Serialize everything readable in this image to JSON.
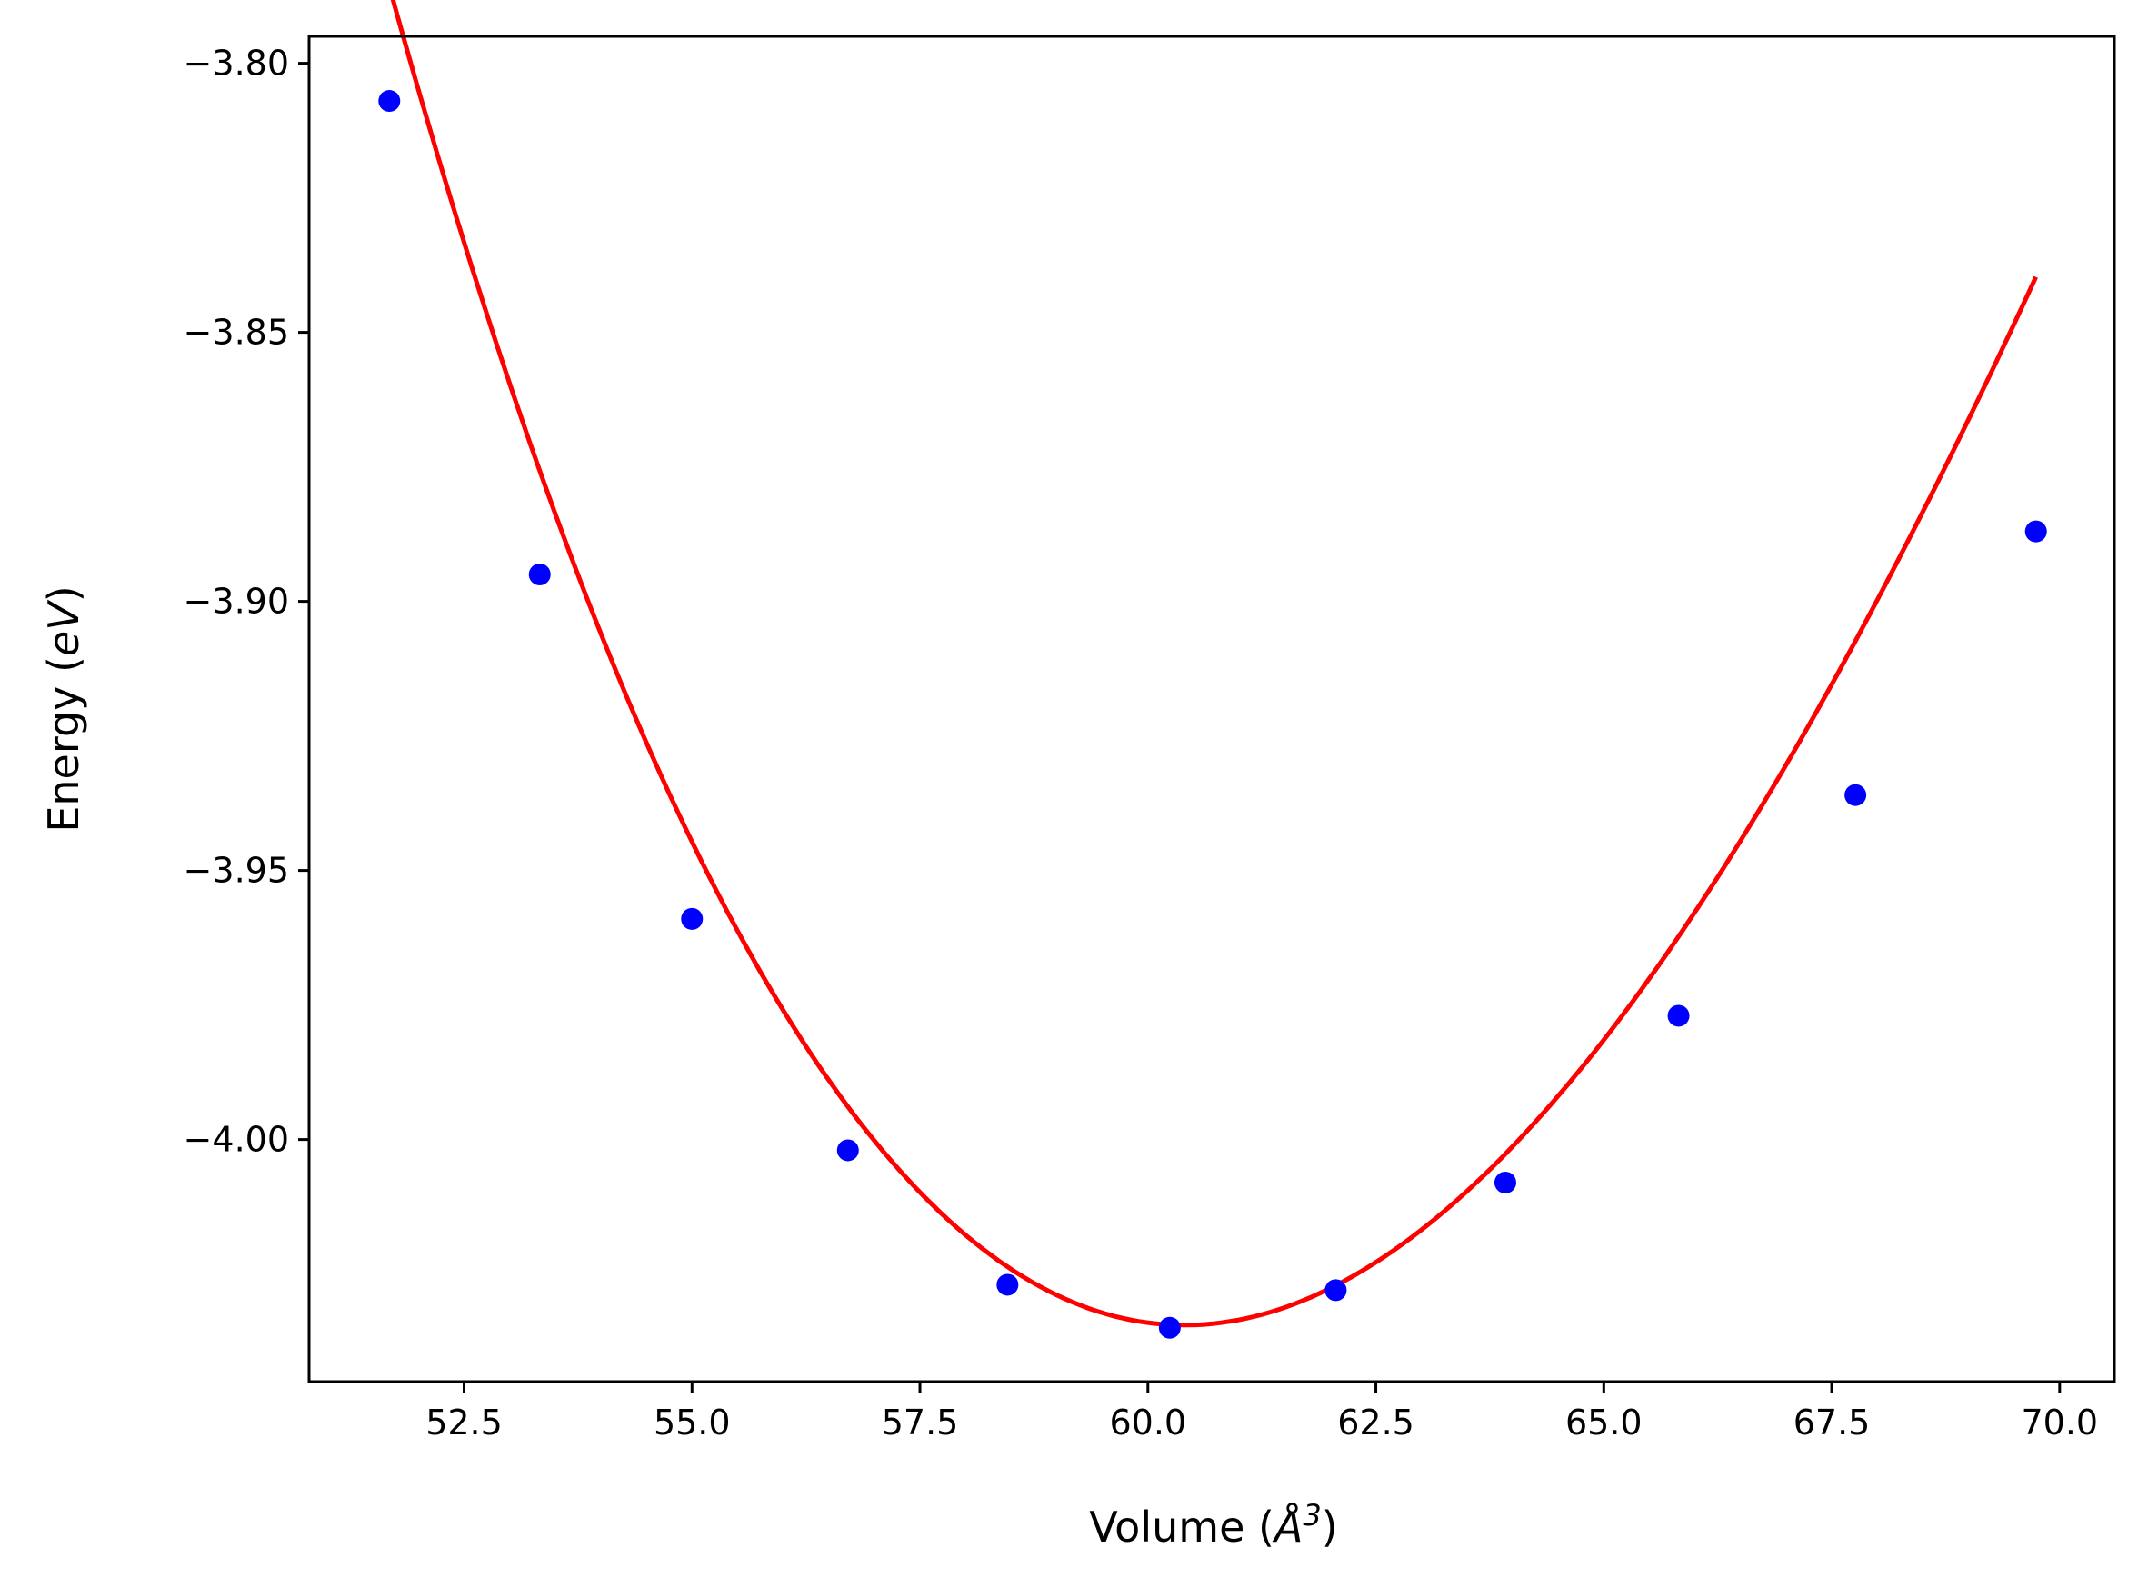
{
  "chart_data": {
    "type": "scatter",
    "title": "",
    "xlabel_parts": {
      "prefix": "Volume (",
      "unit": "Å",
      "superscript": "3",
      "suffix": ")"
    },
    "ylabel_parts": {
      "prefix": "Energy (",
      "unit": "eV",
      "suffix": ")"
    },
    "xlim": [
      50.8,
      70.6
    ],
    "ylim": [
      -4.045,
      -3.795
    ],
    "xticks": [
      52.5,
      55.0,
      57.5,
      60.0,
      62.5,
      65.0,
      67.5,
      70.0
    ],
    "xtick_labels": [
      "52.5",
      "55.0",
      "57.5",
      "60.0",
      "62.5",
      "65.0",
      "67.5",
      "70.0"
    ],
    "yticks": [
      -3.8,
      -3.85,
      -3.9,
      -3.95,
      -4.0
    ],
    "ytick_labels": [
      "−3.80",
      "−3.85",
      "−3.90",
      "−3.95",
      "−4.00"
    ],
    "grid": false,
    "series": [
      {
        "kind": "markers",
        "color": "#0000ff",
        "x": [
          51.68,
          53.33,
          55.0,
          56.71,
          58.46,
          60.24,
          62.06,
          63.92,
          65.82,
          67.76,
          69.74
        ],
        "y": [
          -3.807,
          -3.895,
          -3.959,
          -4.002,
          -4.027,
          -4.035,
          -4.028,
          -4.008,
          -3.977,
          -3.936,
          -3.887
        ]
      },
      {
        "kind": "fit-line",
        "color": "#ff0000",
        "x_range": [
          51.68,
          69.74
        ],
        "vmin": 60.4,
        "emin": -4.0345,
        "a": 0.00277,
        "b": -5.75e-05
      }
    ]
  }
}
